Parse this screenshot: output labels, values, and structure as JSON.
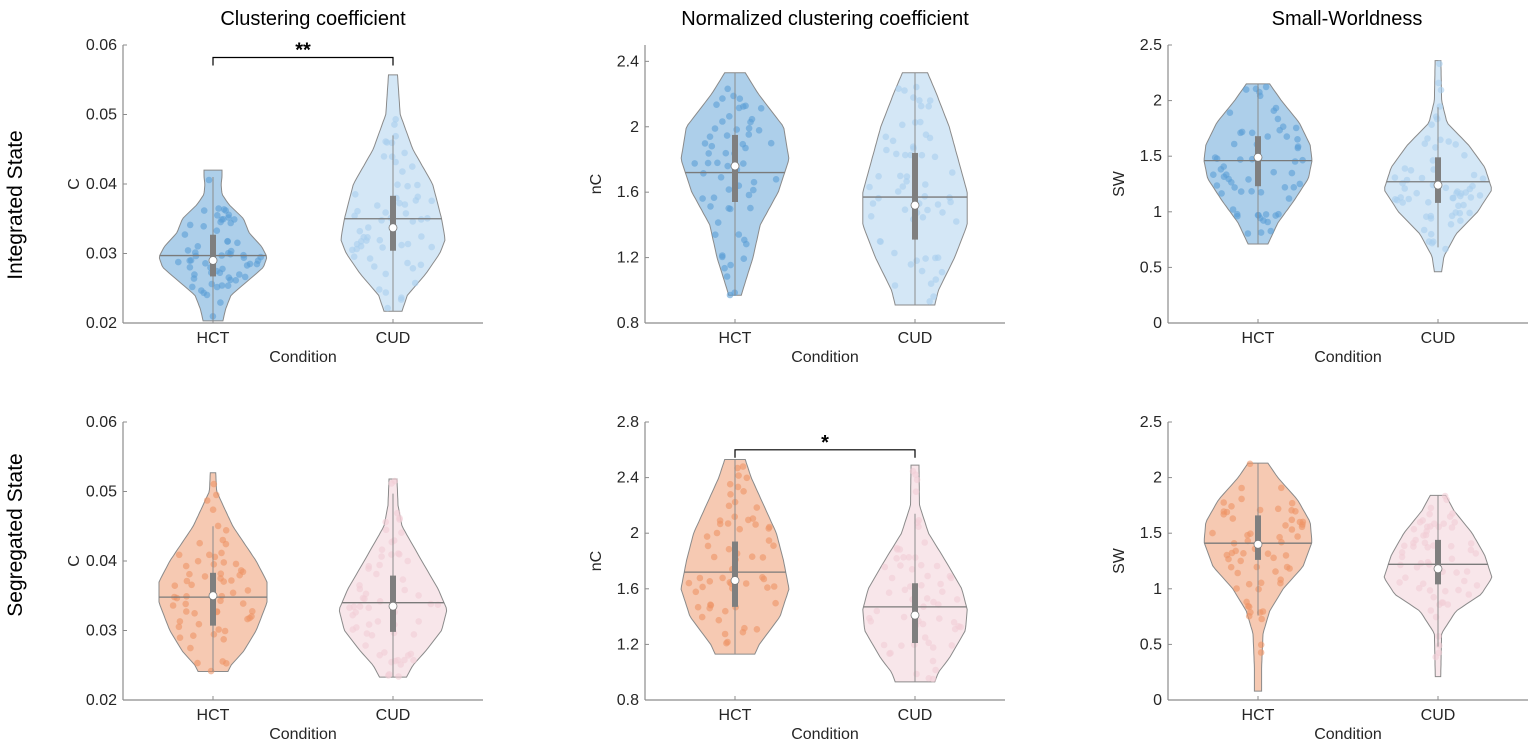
{
  "row_labels": [
    "Integrated State",
    "Segregated State"
  ],
  "column_titles": [
    "Clustering coefficient",
    "Normalized clustering coefficient",
    "Small-Worldness"
  ],
  "colors": {
    "integrated_hct": "#5b9fd6",
    "integrated_cud": "#a9cfee",
    "segregated_hct": "#ee9466",
    "segregated_cud": "#f1cdd6",
    "outline": "#8a8a8a",
    "box": "#7f7f7f"
  },
  "chart_data": [
    {
      "type": "violin",
      "row": 0,
      "col": 0,
      "title": "Clustering coefficient",
      "xlabel": "Condition",
      "ylabel": "C",
      "categories": [
        "HCT",
        "CUD"
      ],
      "ylim": [
        0.02,
        0.06
      ],
      "yticks": [
        0.02,
        0.03,
        0.04,
        0.05,
        0.06
      ],
      "ytick_labels": [
        "0.02",
        "0.03",
        "0.04",
        "0.05",
        "0.06"
      ],
      "significance": {
        "label": "**",
        "y": 0.0582,
        "between": [
          "HCT",
          "CUD"
        ]
      },
      "series": [
        {
          "name": "HCT",
          "color_key": "integrated_hct",
          "mean": 0.0297,
          "median": 0.029,
          "q1": 0.0267,
          "q3": 0.0327,
          "whisker": [
            0.0203,
            0.041
          ],
          "density": [
            [
              0.0203,
              0.055
            ],
            [
              0.022,
              0.07
            ],
            [
              0.024,
              0.1
            ],
            [
              0.026,
              0.19
            ],
            [
              0.028,
              0.28
            ],
            [
              0.0295,
              0.3
            ],
            [
              0.031,
              0.27
            ],
            [
              0.033,
              0.2
            ],
            [
              0.035,
              0.17
            ],
            [
              0.037,
              0.09
            ],
            [
              0.0385,
              0.05
            ],
            [
              0.04,
              0.045
            ],
            [
              0.041,
              0.05
            ],
            [
              0.042,
              0.05
            ]
          ]
        },
        {
          "name": "CUD",
          "color_key": "integrated_cud",
          "mean": 0.035,
          "median": 0.0337,
          "q1": 0.0304,
          "q3": 0.0383,
          "whisker": [
            0.0217,
            0.047
          ],
          "density": [
            [
              0.0217,
              0.05
            ],
            [
              0.024,
              0.08
            ],
            [
              0.027,
              0.18
            ],
            [
              0.03,
              0.26
            ],
            [
              0.032,
              0.29
            ],
            [
              0.035,
              0.27
            ],
            [
              0.04,
              0.22
            ],
            [
              0.045,
              0.11
            ],
            [
              0.05,
              0.04
            ],
            [
              0.0557,
              0.025
            ]
          ]
        }
      ]
    },
    {
      "type": "violin",
      "row": 0,
      "col": 1,
      "title": "Normalized clustering coefficient",
      "xlabel": "Condition",
      "ylabel": "nC",
      "categories": [
        "HCT",
        "CUD"
      ],
      "ylim": [
        0.8,
        2.5
      ],
      "yticks": [
        0.8,
        1.2,
        1.6,
        2,
        2.4
      ],
      "ytick_labels": [
        "0.8",
        "1.2",
        "1.6",
        "2",
        "2.4"
      ],
      "significance": null,
      "series": [
        {
          "name": "HCT",
          "color_key": "integrated_hct",
          "mean": 1.72,
          "median": 1.76,
          "q1": 1.54,
          "q3": 1.95,
          "whisker": [
            0.97,
            2.33
          ],
          "density": [
            [
              0.97,
              0.035
            ],
            [
              1.05,
              0.057
            ],
            [
              1.2,
              0.1
            ],
            [
              1.4,
              0.14
            ],
            [
              1.6,
              0.24
            ],
            [
              1.8,
              0.3
            ],
            [
              2.0,
              0.27
            ],
            [
              2.2,
              0.13
            ],
            [
              2.33,
              0.057
            ]
          ]
        },
        {
          "name": "CUD",
          "color_key": "integrated_cud",
          "mean": 1.57,
          "median": 1.52,
          "q1": 1.31,
          "q3": 1.84,
          "whisker": [
            0.91,
            2.33
          ],
          "density": [
            [
              0.91,
              0.11
            ],
            [
              1.0,
              0.13
            ],
            [
              1.2,
              0.22
            ],
            [
              1.4,
              0.29
            ],
            [
              1.6,
              0.29
            ],
            [
              1.8,
              0.24
            ],
            [
              2.0,
              0.19
            ],
            [
              2.2,
              0.12
            ],
            [
              2.33,
              0.07
            ]
          ]
        }
      ]
    },
    {
      "type": "violin",
      "row": 0,
      "col": 2,
      "title": "Small-Worldness",
      "xlabel": "Condition",
      "ylabel": "SW",
      "categories": [
        "HCT",
        "CUD"
      ],
      "ylim": [
        0,
        2.5
      ],
      "yticks": [
        0,
        0.5,
        1,
        1.5,
        2,
        2.5
      ],
      "ytick_labels": [
        "0",
        "0.5",
        "1",
        "1.5",
        "2",
        "2.5"
      ],
      "significance": null,
      "series": [
        {
          "name": "HCT",
          "color_key": "integrated_hct",
          "mean": 1.46,
          "median": 1.49,
          "q1": 1.23,
          "q3": 1.68,
          "whisker": [
            0.71,
            2.15
          ],
          "density": [
            [
              0.71,
              0.055
            ],
            [
              0.9,
              0.11
            ],
            [
              1.1,
              0.2
            ],
            [
              1.3,
              0.28
            ],
            [
              1.46,
              0.3
            ],
            [
              1.6,
              0.29
            ],
            [
              1.8,
              0.23
            ],
            [
              2.0,
              0.13
            ],
            [
              2.15,
              0.065
            ]
          ]
        },
        {
          "name": "CUD",
          "color_key": "integrated_cud",
          "mean": 1.27,
          "median": 1.24,
          "q1": 1.08,
          "q3": 1.49,
          "whisker": [
            0.68,
            1.94
          ],
          "density": [
            [
              0.46,
              0.02
            ],
            [
              0.6,
              0.033
            ],
            [
              0.8,
              0.1
            ],
            [
              1.0,
              0.22
            ],
            [
              1.2,
              0.3
            ],
            [
              1.4,
              0.26
            ],
            [
              1.6,
              0.17
            ],
            [
              1.8,
              0.05
            ],
            [
              2.0,
              0.02
            ],
            [
              2.36,
              0.016
            ]
          ]
        }
      ]
    },
    {
      "type": "violin",
      "row": 1,
      "col": 0,
      "title": "",
      "xlabel": "Condition",
      "ylabel": "C",
      "categories": [
        "HCT",
        "CUD"
      ],
      "ylim": [
        0.02,
        0.06
      ],
      "yticks": [
        0.02,
        0.03,
        0.04,
        0.05,
        0.06
      ],
      "ytick_labels": [
        "0.02",
        "0.03",
        "0.04",
        "0.05",
        "0.06"
      ],
      "significance": null,
      "series": [
        {
          "name": "HCT",
          "color_key": "segregated_hct",
          "mean": 0.0348,
          "median": 0.035,
          "q1": 0.0307,
          "q3": 0.0383,
          "whisker": [
            0.0241,
            0.045
          ],
          "density": [
            [
              0.0241,
              0.083
            ],
            [
              0.025,
              0.1
            ],
            [
              0.027,
              0.17
            ],
            [
              0.03,
              0.24
            ],
            [
              0.034,
              0.3
            ],
            [
              0.037,
              0.3
            ],
            [
              0.04,
              0.24
            ],
            [
              0.045,
              0.11
            ],
            [
              0.05,
              0.02
            ],
            [
              0.0527,
              0.015
            ]
          ]
        },
        {
          "name": "CUD",
          "color_key": "segregated_cud",
          "mean": 0.034,
          "median": 0.0335,
          "q1": 0.0298,
          "q3": 0.0379,
          "whisker": [
            0.0233,
            0.0497
          ],
          "density": [
            [
              0.0233,
              0.075
            ],
            [
              0.025,
              0.11
            ],
            [
              0.027,
              0.18
            ],
            [
              0.03,
              0.27
            ],
            [
              0.033,
              0.3
            ],
            [
              0.036,
              0.25
            ],
            [
              0.04,
              0.16
            ],
            [
              0.045,
              0.05
            ],
            [
              0.048,
              0.028
            ],
            [
              0.0518,
              0.022
            ]
          ]
        }
      ]
    },
    {
      "type": "violin",
      "row": 1,
      "col": 1,
      "title": "",
      "xlabel": "Condition",
      "ylabel": "nC",
      "categories": [
        "HCT",
        "CUD"
      ],
      "ylim": [
        0.8,
        2.8
      ],
      "yticks": [
        0.8,
        1.2,
        1.6,
        2,
        2.4,
        2.8
      ],
      "ytick_labels": [
        "0.8",
        "1.2",
        "1.6",
        "2",
        "2.4",
        "2.8"
      ],
      "significance": {
        "label": "*",
        "y": 2.6,
        "between": [
          "HCT",
          "CUD"
        ]
      },
      "series": [
        {
          "name": "HCT",
          "color_key": "segregated_hct",
          "mean": 1.72,
          "median": 1.66,
          "q1": 1.47,
          "q3": 1.94,
          "whisker": [
            1.13,
            2.53
          ],
          "density": [
            [
              1.13,
              0.11
            ],
            [
              1.2,
              0.135
            ],
            [
              1.4,
              0.25
            ],
            [
              1.6,
              0.3
            ],
            [
              1.8,
              0.27
            ],
            [
              2.0,
              0.23
            ],
            [
              2.2,
              0.16
            ],
            [
              2.4,
              0.09
            ],
            [
              2.53,
              0.057
            ]
          ]
        },
        {
          "name": "CUD",
          "color_key": "segregated_cud",
          "mean": 1.47,
          "median": 1.41,
          "q1": 1.21,
          "q3": 1.64,
          "whisker": [
            0.93,
            2.14
          ],
          "density": [
            [
              0.93,
              0.11
            ],
            [
              1.0,
              0.13
            ],
            [
              1.1,
              0.19
            ],
            [
              1.3,
              0.28
            ],
            [
              1.45,
              0.29
            ],
            [
              1.6,
              0.26
            ],
            [
              1.8,
              0.17
            ],
            [
              2.0,
              0.075
            ],
            [
              2.2,
              0.025
            ],
            [
              2.49,
              0.022
            ]
          ]
        }
      ]
    },
    {
      "type": "violin",
      "row": 1,
      "col": 2,
      "title": "",
      "xlabel": "Condition",
      "ylabel": "SW",
      "categories": [
        "HCT",
        "CUD"
      ],
      "ylim": [
        0,
        2.5
      ],
      "yticks": [
        0,
        0.5,
        1,
        1.5,
        2,
        2.5
      ],
      "ytick_labels": [
        "0",
        "0.5",
        "1",
        "1.5",
        "2",
        "2.5"
      ],
      "significance": null,
      "series": [
        {
          "name": "HCT",
          "color_key": "segregated_hct",
          "mean": 1.41,
          "median": 1.4,
          "q1": 1.26,
          "q3": 1.66,
          "whisker": [
            0.76,
            2.13
          ],
          "density": [
            [
              0.08,
              0.02
            ],
            [
              0.3,
              0.02
            ],
            [
              0.6,
              0.028
            ],
            [
              0.8,
              0.065
            ],
            [
              1.0,
              0.14
            ],
            [
              1.2,
              0.25
            ],
            [
              1.42,
              0.3
            ],
            [
              1.6,
              0.29
            ],
            [
              1.8,
              0.22
            ],
            [
              2.0,
              0.11
            ],
            [
              2.13,
              0.055
            ]
          ]
        },
        {
          "name": "CUD",
          "color_key": "segregated_cud",
          "mean": 1.22,
          "median": 1.18,
          "q1": 1.04,
          "q3": 1.44,
          "whisker": [
            0.48,
            1.84
          ],
          "density": [
            [
              0.21,
              0.015
            ],
            [
              0.6,
              0.02
            ],
            [
              0.8,
              0.1
            ],
            [
              0.95,
              0.24
            ],
            [
              1.1,
              0.3
            ],
            [
              1.3,
              0.26
            ],
            [
              1.5,
              0.19
            ],
            [
              1.7,
              0.09
            ],
            [
              1.84,
              0.043
            ]
          ]
        }
      ]
    }
  ]
}
